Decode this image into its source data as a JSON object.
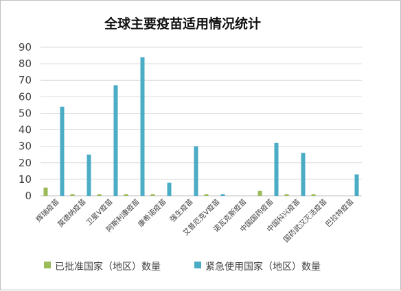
{
  "chart_data": {
    "type": "bar",
    "title": "全球主要疫苗适用情况统计",
    "categories": [
      "辉瑞疫苗",
      "莫德纳疫苗",
      "卫星V疫苗",
      "阿斯利康疫苗",
      "康希诺疫苗",
      "强生疫苗",
      "艾普厄克V疫苗",
      "诺瓦克斯疫苗",
      "中国国药疫苗",
      "中国科兴疫苗",
      "国药武汉灭活疫苗",
      "巴拉特疫苗"
    ],
    "series": [
      {
        "name": "已批准国家（地区）数量",
        "color": "#9bbb59",
        "values": [
          5,
          1,
          1,
          1,
          1,
          0,
          1,
          0,
          3,
          1,
          1,
          0
        ]
      },
      {
        "name": "紧急使用国家（地区）数量",
        "color": "#4bacc6",
        "values": [
          54,
          25,
          67,
          84,
          8,
          30,
          1,
          0,
          32,
          26,
          0,
          13
        ]
      }
    ],
    "yticks": [
      "0",
      "10",
      "20",
      "30",
      "40",
      "50",
      "60",
      "70",
      "80",
      "90"
    ],
    "ylim": [
      0,
      90
    ],
    "grid": true,
    "legend_position": "bottom"
  }
}
